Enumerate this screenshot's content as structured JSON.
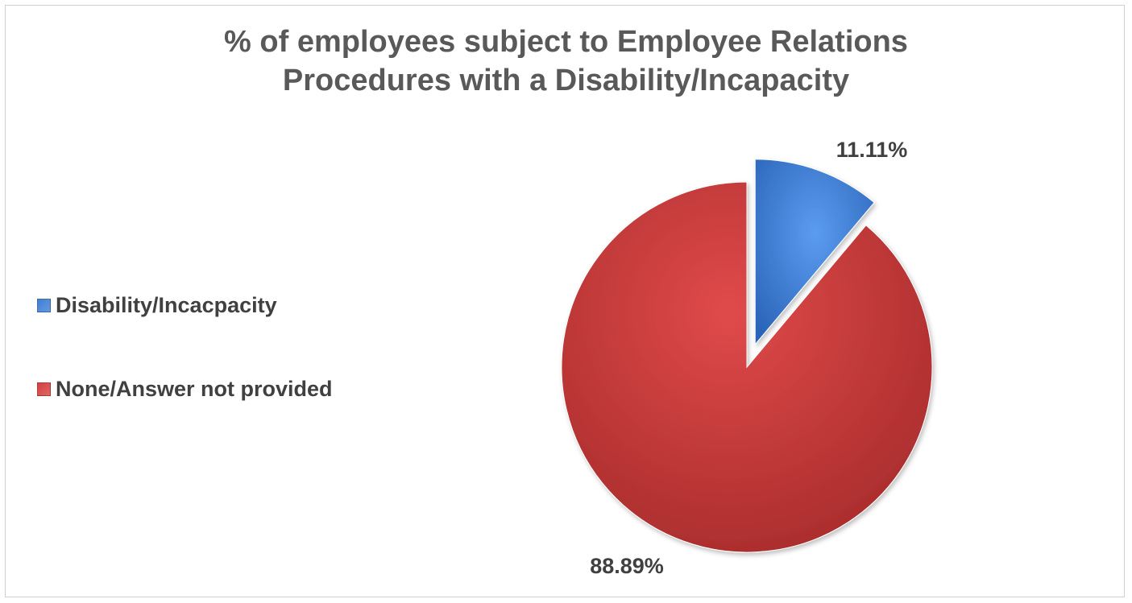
{
  "chart_data": {
    "type": "pie",
    "title_lines": [
      "% of employees subject to Employee Relations",
      "Procedures with a Disability/Incapacity"
    ],
    "categories": [
      "Disability/Incacpacity",
      "None/Answer not provided"
    ],
    "values": [
      11.11,
      88.89
    ],
    "data_labels": [
      "11.11%",
      "88.89%"
    ],
    "colors": [
      "#3f7fd6",
      "#d63f3f"
    ],
    "exploded": [
      true,
      false
    ],
    "legend_position": "left"
  }
}
